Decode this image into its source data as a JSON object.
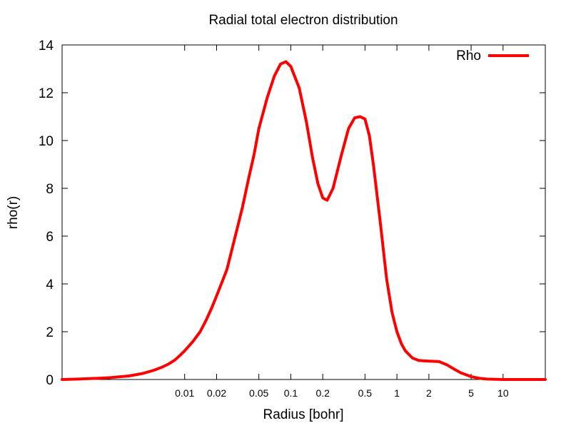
{
  "chart_data": {
    "type": "line",
    "title": "Radial total electron distribution",
    "xlabel": "Radius [bohr]",
    "ylabel": "rho(r)",
    "xscale": "log",
    "xlim": [
      0.0007,
      25
    ],
    "ylim": [
      0,
      14
    ],
    "grid": false,
    "legend_position": "top-right",
    "x_ticks": [
      {
        "value": 0.01,
        "label": "0.01"
      },
      {
        "value": 0.02,
        "label": "0.02"
      },
      {
        "value": 0.05,
        "label": "0.05"
      },
      {
        "value": 0.1,
        "label": "0.1"
      },
      {
        "value": 0.2,
        "label": "0.2"
      },
      {
        "value": 0.5,
        "label": "0.5"
      },
      {
        "value": 1,
        "label": "1"
      },
      {
        "value": 2,
        "label": "2"
      },
      {
        "value": 5,
        "label": "5"
      },
      {
        "value": 10,
        "label": "10"
      }
    ],
    "y_ticks": [
      {
        "value": 0,
        "label": "0"
      },
      {
        "value": 2,
        "label": "2"
      },
      {
        "value": 4,
        "label": "4"
      },
      {
        "value": 6,
        "label": "6"
      },
      {
        "value": 8,
        "label": "8"
      },
      {
        "value": 10,
        "label": "10"
      },
      {
        "value": 12,
        "label": "12"
      },
      {
        "value": 14,
        "label": "14"
      }
    ],
    "series": [
      {
        "name": "Rho",
        "color": "#ff0000",
        "x": [
          0.0007,
          0.001,
          0.0015,
          0.002,
          0.003,
          0.004,
          0.005,
          0.006,
          0.007,
          0.008,
          0.009,
          0.01,
          0.012,
          0.014,
          0.016,
          0.018,
          0.02,
          0.025,
          0.03,
          0.035,
          0.04,
          0.045,
          0.05,
          0.06,
          0.07,
          0.08,
          0.09,
          0.1,
          0.12,
          0.14,
          0.16,
          0.18,
          0.2,
          0.22,
          0.25,
          0.3,
          0.35,
          0.4,
          0.45,
          0.5,
          0.55,
          0.6,
          0.7,
          0.8,
          0.9,
          1.0,
          1.1,
          1.2,
          1.4,
          1.6,
          1.8,
          2.0,
          2.5,
          3.0,
          3.5,
          4.0,
          5.0,
          6.0,
          7.0,
          8.0,
          10.0,
          15.0,
          25.0
        ],
        "y": [
          0.0,
          0.02,
          0.05,
          0.08,
          0.15,
          0.25,
          0.37,
          0.5,
          0.64,
          0.8,
          1.0,
          1.2,
          1.6,
          2.0,
          2.5,
          3.0,
          3.5,
          4.6,
          6.0,
          7.2,
          8.4,
          9.4,
          10.5,
          11.8,
          12.7,
          13.2,
          13.3,
          13.1,
          12.2,
          10.8,
          9.3,
          8.2,
          7.6,
          7.5,
          8.0,
          9.4,
          10.5,
          10.95,
          11.0,
          10.9,
          10.2,
          9.0,
          6.5,
          4.2,
          2.8,
          2.0,
          1.5,
          1.2,
          0.9,
          0.8,
          0.78,
          0.77,
          0.75,
          0.6,
          0.42,
          0.28,
          0.12,
          0.05,
          0.02,
          0.01,
          0.0,
          0.0,
          0.0
        ]
      }
    ]
  }
}
